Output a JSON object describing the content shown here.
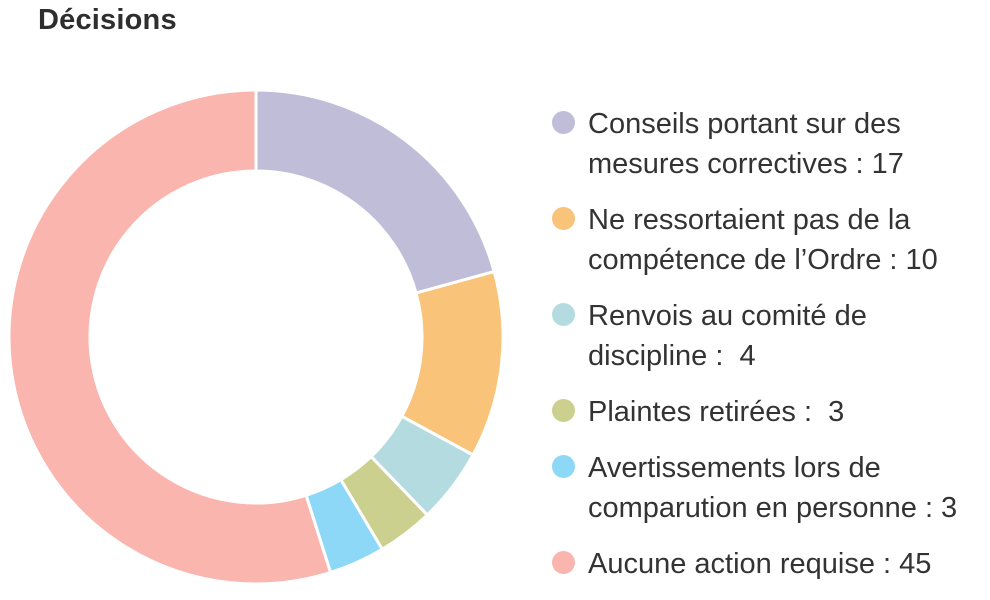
{
  "chart_data": {
    "type": "pie",
    "title": "Décisions",
    "donut": true,
    "startAngleDeg": 0,
    "slices": [
      {
        "name": "Conseils portant sur des mesures correctives",
        "value": 17,
        "color": "#c0bdd9",
        "label_lines": [
          "Conseils portant sur des",
          "mesures correctives : 17"
        ]
      },
      {
        "name": "Ne ressortaient pas de la compétence de l’Ordre",
        "value": 10,
        "color": "#f9c37a",
        "label_lines": [
          "Ne ressortaient pas de la",
          "compétence de l’Ordre : 10"
        ]
      },
      {
        "name": "Renvois au comité de discipline",
        "value": 4,
        "color": "#b4dce0",
        "label_lines": [
          "Renvois au comité de",
          "discipline :  4"
        ]
      },
      {
        "name": "Plaintes retirées",
        "value": 3,
        "color": "#ccd08f",
        "label_lines": [
          "Plaintes retirées :  3"
        ]
      },
      {
        "name": "Avertissements lors de comparution en personne",
        "value": 3,
        "color": "#8dd7f7",
        "label_lines": [
          "Avertissements lors de",
          "comparution en personne : 3"
        ]
      },
      {
        "name": "Aucune action requise",
        "value": 45,
        "color": "#f9b5ae",
        "label_lines": [
          "Aucune action requise : 45"
        ]
      }
    ],
    "legend_position": "right"
  }
}
